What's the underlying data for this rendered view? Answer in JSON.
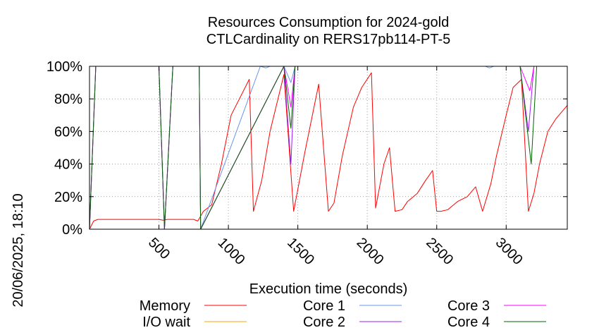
{
  "chart_data": {
    "type": "line",
    "title": "Resources Consumption for 2024-gold",
    "subtitle": "CTLCardinality on RERS17pb114-PT-5",
    "xlabel": "Execution time (seconds)",
    "ylabel": "",
    "side_label": "20/06/2025, 18:10",
    "xlim": [
      0,
      3440
    ],
    "ylim": [
      0,
      100
    ],
    "x_ticks": [
      500,
      1000,
      1500,
      2000,
      2500,
      3000
    ],
    "y_ticks": [
      0,
      20,
      40,
      60,
      80,
      100
    ],
    "y_tick_labels": [
      "0%",
      "20%",
      "40%",
      "60%",
      "80%",
      "100%"
    ],
    "grid": true,
    "legend_placement": "bottom",
    "series": [
      {
        "name": "Memory",
        "color": "#ff0000",
        "x": [
          0,
          30,
          60,
          130,
          200,
          300,
          400,
          500,
          530,
          560,
          620,
          680,
          720,
          750,
          780,
          820,
          880,
          950,
          1020,
          1150,
          1180,
          1240,
          1300,
          1400,
          1470,
          1550,
          1650,
          1720,
          1760,
          1820,
          1900,
          1960,
          2030,
          2060,
          2120,
          2160,
          2200,
          2250,
          2290,
          2360,
          2420,
          2470,
          2500,
          2530,
          2580,
          2650,
          2720,
          2780,
          2830,
          2890,
          2930,
          3000,
          3050,
          3110,
          3160,
          3200,
          3240,
          3300,
          3360,
          3440
        ],
        "y": [
          0,
          5,
          6,
          6,
          6,
          6,
          6,
          6,
          5.5,
          6,
          6,
          6,
          6,
          6,
          5,
          11,
          15,
          40,
          70,
          92,
          11,
          30,
          60,
          95,
          11,
          47,
          89,
          11,
          16,
          45,
          75,
          87,
          96,
          13,
          40,
          50,
          11,
          12,
          17,
          22,
          30,
          36,
          11,
          11,
          12,
          17,
          20,
          26,
          11,
          28,
          45,
          70,
          87,
          92,
          11,
          22,
          40,
          60,
          68,
          76
        ]
      },
      {
        "name": "I/O wait",
        "color": "#ffa500",
        "x": [
          0,
          3440
        ],
        "y": [
          0,
          0
        ]
      },
      {
        "name": "Core 1",
        "color": "#6495ed",
        "x": [
          0,
          45,
          500,
          540,
          600,
          790,
          800,
          1230,
          1270,
          1300,
          1400,
          1450,
          1480,
          2850,
          2880,
          2910,
          3140,
          3200,
          3440
        ],
        "y": [
          0,
          100,
          100,
          0,
          100,
          100,
          0,
          100,
          99,
          100,
          100,
          90,
          100,
          100,
          99,
          100,
          100,
          100,
          100
        ]
      },
      {
        "name": "Core 2",
        "color": "#a020f0",
        "x": [
          0,
          45,
          500,
          540,
          600,
          790,
          800,
          1400,
          1450,
          1480,
          3100,
          3160,
          3200,
          3440
        ],
        "y": [
          0,
          100,
          100,
          0,
          100,
          100,
          0,
          100,
          40,
          100,
          100,
          60,
          100,
          100
        ]
      },
      {
        "name": "Core 3",
        "color": "#ff00ff",
        "x": [
          0,
          45,
          500,
          540,
          600,
          790,
          800,
          1400,
          1450,
          1480,
          3100,
          3170,
          3200,
          3440
        ],
        "y": [
          0,
          100,
          100,
          0,
          100,
          100,
          0,
          100,
          75,
          100,
          100,
          85,
          100,
          100
        ]
      },
      {
        "name": "Core 4",
        "color": "#006400",
        "x": [
          0,
          45,
          500,
          540,
          600,
          790,
          800,
          1400,
          1450,
          1480,
          3100,
          3180,
          3220,
          3440
        ],
        "y": [
          0,
          100,
          100,
          0,
          100,
          100,
          0,
          100,
          62,
          100,
          100,
          40,
          100,
          100
        ]
      }
    ]
  }
}
